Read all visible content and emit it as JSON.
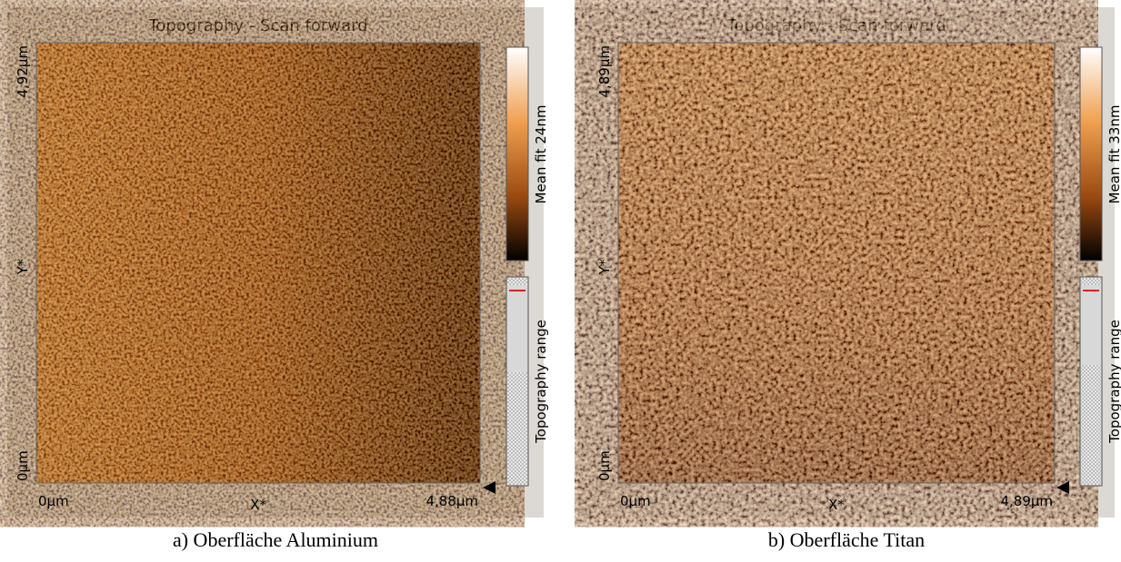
{
  "panels": [
    {
      "title": "Topography - Scan forward",
      "x_start": "0µm",
      "x_axis": "X*",
      "x_end": "4,88µm",
      "y_start": "0µm",
      "y_axis": "Y*",
      "y_end": "4,92µm",
      "colorbar_label": "Mean fit 24nm",
      "range_label": "Topography range",
      "caption": "a) Oberfläche Aluminium"
    },
    {
      "title": "Topography - Scan forward",
      "x_start": "0µm",
      "x_axis": "X*",
      "x_end": "4,89µm",
      "y_start": "0µm",
      "y_axis": "Y*",
      "y_end": "4,89µm",
      "colorbar_label": "Mean fit 33nm",
      "range_label": "Topography range",
      "caption": "b) Oberfläche Titan"
    }
  ]
}
